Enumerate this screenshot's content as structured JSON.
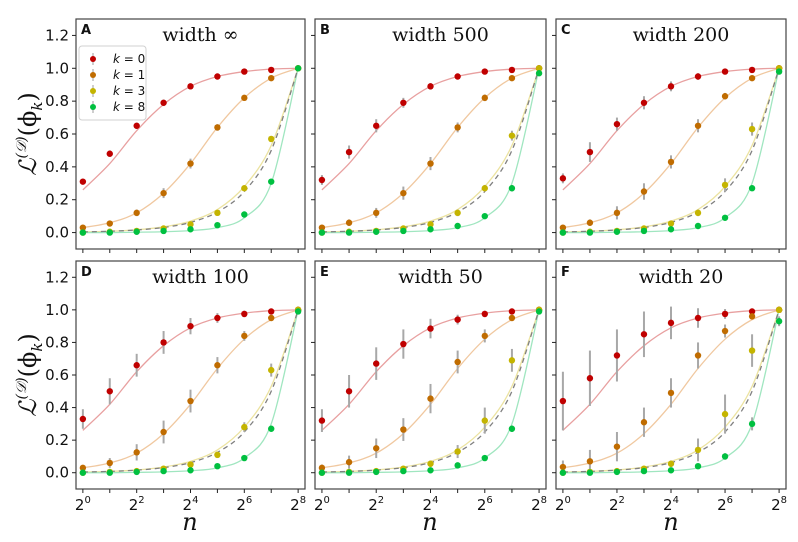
{
  "chart_data": {
    "type": "scatter",
    "layout": "2x3 grid of panels",
    "xscale": "log2",
    "xlabel": "n",
    "ylabel": "L^(D)(phi_k)",
    "ylabel_parts": {
      "main": "ℒ",
      "sup": "(ᵉ)",
      "arg": "(ϕ",
      "sub": "k",
      "close": ")"
    },
    "x": [
      1,
      2,
      4,
      8,
      16,
      32,
      64,
      128,
      256
    ],
    "xticks": [
      1,
      4,
      16,
      64,
      256
    ],
    "xtick_labels": [
      {
        "base": "2",
        "exp": "0"
      },
      {
        "base": "2",
        "exp": "2"
      },
      {
        "base": "2",
        "exp": "4"
      },
      {
        "base": "2",
        "exp": "6"
      },
      {
        "base": "2",
        "exp": "8"
      }
    ],
    "ylim": [
      -0.1,
      1.3
    ],
    "yticks": [
      0.0,
      0.2,
      0.4,
      0.6,
      0.8,
      1.0,
      1.2
    ],
    "ytick_labels": [
      "0.0",
      "0.2",
      "0.4",
      "0.6",
      "0.8",
      "1.0",
      "1.2"
    ],
    "legend": {
      "placement": "top-left of panel A",
      "entries": [
        {
          "label_var": "k",
          "label_eq": " = 0",
          "color": "#c00000"
        },
        {
          "label_var": "k",
          "label_eq": " = 1",
          "color": "#c06c00"
        },
        {
          "label_var": "k",
          "label_eq": " = 3",
          "color": "#c4b400"
        },
        {
          "label_var": "k",
          "label_eq": " = 8",
          "color": "#00c040"
        }
      ]
    },
    "curve_colors": [
      "#e8a0a0",
      "#f0c8a0",
      "#ece3a0",
      "#a0e6c0"
    ],
    "dashed_color": "#808080",
    "reference_curves": {
      "description": "smooth theory curves per k plus a dashed gray reference",
      "k0": [
        0.26,
        0.42,
        0.62,
        0.78,
        0.89,
        0.95,
        0.98,
        0.995,
        1.0
      ],
      "k1": [
        0.03,
        0.06,
        0.12,
        0.24,
        0.42,
        0.64,
        0.82,
        0.94,
        1.0
      ],
      "k3": [
        0.004,
        0.008,
        0.017,
        0.035,
        0.07,
        0.14,
        0.28,
        0.53,
        1.0
      ],
      "k8": [
        0.0,
        0.0,
        0.002,
        0.005,
        0.012,
        0.03,
        0.09,
        0.3,
        1.0
      ],
      "dashed": [
        0.004,
        0.008,
        0.016,
        0.031,
        0.062,
        0.125,
        0.25,
        0.5,
        1.0
      ]
    },
    "panels": [
      {
        "letter": "A",
        "title": "width ∞",
        "series": [
          {
            "k": 0,
            "values": [
              0.31,
              0.48,
              0.65,
              0.79,
              0.89,
              0.95,
              0.98,
              0.99,
              1.0
            ],
            "err": [
              0.01,
              0.02,
              0.02,
              0.02,
              0.01,
              0.01,
              0.005,
              0.005,
              0
            ]
          },
          {
            "k": 1,
            "values": [
              0.03,
              0.055,
              0.12,
              0.24,
              0.42,
              0.64,
              0.82,
              0.94,
              1.0
            ],
            "err": [
              0.01,
              0.01,
              0.02,
              0.03,
              0.03,
              0.02,
              0.01,
              0.01,
              0
            ]
          },
          {
            "k": 3,
            "values": [
              0.0,
              0.005,
              0.01,
              0.025,
              0.05,
              0.12,
              0.27,
              0.57,
              1.0
            ],
            "err": [
              0,
              0,
              0,
              0.005,
              0.01,
              0.01,
              0.01,
              0.01,
              0
            ]
          },
          {
            "k": 8,
            "values": [
              0.0,
              0.0,
              0.005,
              0.01,
              0.02,
              0.045,
              0.11,
              0.31,
              1.0
            ],
            "err": [
              0,
              0,
              0,
              0,
              0,
              0.005,
              0.01,
              0.01,
              0
            ]
          }
        ]
      },
      {
        "letter": "B",
        "title": "width 500",
        "series": [
          {
            "k": 0,
            "values": [
              0.32,
              0.49,
              0.65,
              0.79,
              0.89,
              0.95,
              0.98,
              0.99,
              1.0
            ],
            "err": [
              0.03,
              0.04,
              0.04,
              0.03,
              0.02,
              0.01,
              0.01,
              0.005,
              0
            ]
          },
          {
            "k": 1,
            "values": [
              0.03,
              0.06,
              0.12,
              0.24,
              0.42,
              0.64,
              0.82,
              0.94,
              1.0
            ],
            "err": [
              0.01,
              0.02,
              0.03,
              0.04,
              0.04,
              0.03,
              0.02,
              0.01,
              0
            ]
          },
          {
            "k": 3,
            "values": [
              0.0,
              0.005,
              0.01,
              0.025,
              0.05,
              0.12,
              0.27,
              0.59,
              1.0
            ],
            "err": [
              0,
              0,
              0.005,
              0.01,
              0.01,
              0.02,
              0.02,
              0.03,
              0
            ]
          },
          {
            "k": 8,
            "values": [
              0.0,
              0.0,
              0.005,
              0.01,
              0.02,
              0.04,
              0.1,
              0.27,
              0.97
            ],
            "err": [
              0,
              0,
              0,
              0,
              0.005,
              0.01,
              0.01,
              0.02,
              0.01
            ]
          }
        ]
      },
      {
        "letter": "C",
        "title": "width 200",
        "series": [
          {
            "k": 0,
            "values": [
              0.33,
              0.49,
              0.66,
              0.79,
              0.89,
              0.95,
              0.98,
              0.99,
              1.0
            ],
            "err": [
              0.03,
              0.06,
              0.04,
              0.04,
              0.03,
              0.02,
              0.01,
              0.005,
              0
            ]
          },
          {
            "k": 1,
            "values": [
              0.03,
              0.06,
              0.12,
              0.25,
              0.43,
              0.65,
              0.83,
              0.94,
              1.0
            ],
            "err": [
              0.01,
              0.02,
              0.04,
              0.05,
              0.04,
              0.04,
              0.02,
              0.01,
              0
            ]
          },
          {
            "k": 3,
            "values": [
              0.0,
              0.005,
              0.01,
              0.025,
              0.055,
              0.12,
              0.29,
              0.63,
              1.0
            ],
            "err": [
              0,
              0,
              0.005,
              0.01,
              0.01,
              0.02,
              0.04,
              0.04,
              0
            ]
          },
          {
            "k": 8,
            "values": [
              0.0,
              0.0,
              0.005,
              0.01,
              0.02,
              0.04,
              0.09,
              0.27,
              0.98
            ],
            "err": [
              0,
              0,
              0,
              0,
              0.005,
              0.01,
              0.01,
              0.01,
              0.01
            ]
          }
        ]
      },
      {
        "letter": "D",
        "title": "width 100",
        "series": [
          {
            "k": 0,
            "values": [
              0.33,
              0.5,
              0.66,
              0.8,
              0.9,
              0.95,
              0.975,
              0.99,
              1.0
            ],
            "err": [
              0.06,
              0.08,
              0.07,
              0.07,
              0.05,
              0.03,
              0.02,
              0.01,
              0
            ]
          },
          {
            "k": 1,
            "values": [
              0.03,
              0.06,
              0.125,
              0.25,
              0.44,
              0.66,
              0.84,
              0.95,
              1.0
            ],
            "err": [
              0.01,
              0.03,
              0.05,
              0.07,
              0.07,
              0.05,
              0.03,
              0.01,
              0
            ]
          },
          {
            "k": 3,
            "values": [
              0.0,
              0.005,
              0.01,
              0.025,
              0.05,
              0.11,
              0.28,
              0.63,
              1.0
            ],
            "err": [
              0,
              0,
              0.005,
              0.01,
              0.01,
              0.02,
              0.03,
              0.04,
              0
            ]
          },
          {
            "k": 8,
            "values": [
              0.0,
              0.0,
              0.005,
              0.01,
              0.015,
              0.04,
              0.09,
              0.27,
              0.99
            ],
            "err": [
              0,
              0,
              0,
              0,
              0.005,
              0.01,
              0.01,
              0.01,
              0.01
            ]
          }
        ]
      },
      {
        "letter": "E",
        "title": "width 50",
        "series": [
          {
            "k": 0,
            "values": [
              0.32,
              0.5,
              0.67,
              0.79,
              0.885,
              0.94,
              0.975,
              0.99,
              1.0
            ],
            "err": [
              0.07,
              0.1,
              0.1,
              0.09,
              0.06,
              0.03,
              0.02,
              0.01,
              0
            ]
          },
          {
            "k": 1,
            "values": [
              0.03,
              0.065,
              0.15,
              0.265,
              0.455,
              0.68,
              0.84,
              0.95,
              1.0
            ],
            "err": [
              0.02,
              0.04,
              0.06,
              0.07,
              0.09,
              0.07,
              0.04,
              0.01,
              0
            ]
          },
          {
            "k": 3,
            "values": [
              0.0,
              0.005,
              0.01,
              0.025,
              0.055,
              0.13,
              0.32,
              0.69,
              1.0
            ],
            "err": [
              0,
              0,
              0.005,
              0.01,
              0.02,
              0.04,
              0.08,
              0.07,
              0
            ]
          },
          {
            "k": 8,
            "values": [
              0.0,
              0.0,
              0.005,
              0.01,
              0.015,
              0.045,
              0.09,
              0.27,
              0.99
            ],
            "err": [
              0,
              0,
              0,
              0,
              0.005,
              0.01,
              0.01,
              0.02,
              0.01
            ]
          }
        ]
      },
      {
        "letter": "F",
        "title": "width 20",
        "series": [
          {
            "k": 0,
            "values": [
              0.44,
              0.58,
              0.72,
              0.85,
              0.92,
              0.95,
              0.975,
              0.99,
              1.0
            ],
            "err": [
              0.18,
              0.17,
              0.16,
              0.14,
              0.1,
              0.06,
              0.03,
              0.01,
              0
            ]
          },
          {
            "k": 1,
            "values": [
              0.035,
              0.07,
              0.16,
              0.31,
              0.49,
              0.72,
              0.87,
              0.96,
              1.0
            ],
            "err": [
              0.04,
              0.07,
              0.09,
              0.09,
              0.09,
              0.08,
              0.04,
              0.01,
              0
            ]
          },
          {
            "k": 3,
            "values": [
              0.0,
              0.005,
              0.01,
              0.025,
              0.055,
              0.14,
              0.36,
              0.75,
              1.0
            ],
            "err": [
              0,
              0,
              0.005,
              0.01,
              0.02,
              0.07,
              0.12,
              0.1,
              0
            ]
          },
          {
            "k": 8,
            "values": [
              0.0,
              0.0,
              0.005,
              0.01,
              0.015,
              0.04,
              0.1,
              0.3,
              0.93
            ],
            "err": [
              0,
              0,
              0,
              0,
              0.005,
              0.01,
              0.02,
              0.04,
              0.03
            ]
          }
        ]
      }
    ]
  }
}
